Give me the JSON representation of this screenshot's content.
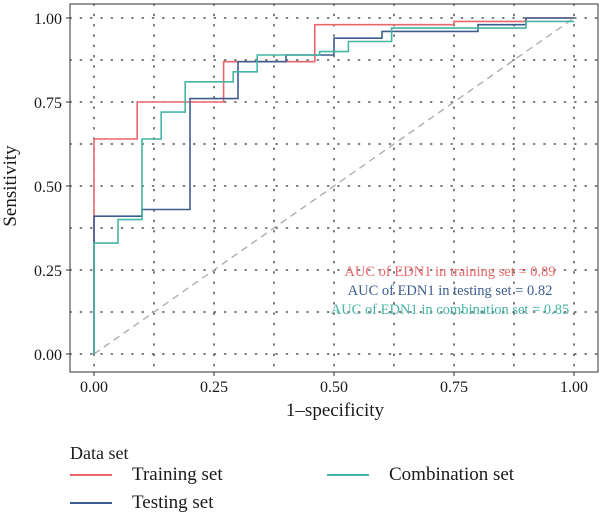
{
  "chart_data": {
    "type": "line",
    "xlabel": "1–specificity",
    "ylabel": "Sensitivity",
    "xlim": [
      0,
      1
    ],
    "ylim": [
      0,
      1
    ],
    "x_ticks": [
      "0.00",
      "0.25",
      "0.50",
      "0.75",
      "1.00"
    ],
    "y_ticks": [
      "0.00",
      "0.25",
      "0.50",
      "0.75",
      "1.00"
    ],
    "grid": "dotted, major and minor",
    "legend_placement": "bottom",
    "legend_title": "Data set",
    "reference_line": {
      "style": "dashed",
      "from": [
        0,
        0
      ],
      "to": [
        1,
        1
      ],
      "color": "#b3b3b3"
    },
    "series": [
      {
        "name": "Training set",
        "color": "#e8676a",
        "points": [
          [
            0,
            0
          ],
          [
            0,
            0.41
          ],
          [
            0,
            0.64
          ],
          [
            0.09,
            0.64
          ],
          [
            0.09,
            0.75
          ],
          [
            0.27,
            0.75
          ],
          [
            0.27,
            0.87
          ],
          [
            0.46,
            0.87
          ],
          [
            0.46,
            0.98
          ],
          [
            0.75,
            0.98
          ],
          [
            0.75,
            0.99
          ],
          [
            0.9,
            0.99
          ],
          [
            0.9,
            1.0
          ],
          [
            1.0,
            1.0
          ]
        ]
      },
      {
        "name": "Testing set",
        "color": "#3d5d8f",
        "points": [
          [
            0,
            0
          ],
          [
            0,
            0.41
          ],
          [
            0.1,
            0.41
          ],
          [
            0.1,
            0.43
          ],
          [
            0.2,
            0.43
          ],
          [
            0.2,
            0.76
          ],
          [
            0.3,
            0.76
          ],
          [
            0.3,
            0.87
          ],
          [
            0.4,
            0.87
          ],
          [
            0.4,
            0.89
          ],
          [
            0.5,
            0.89
          ],
          [
            0.5,
            0.94
          ],
          [
            0.6,
            0.94
          ],
          [
            0.6,
            0.96
          ],
          [
            0.8,
            0.96
          ],
          [
            0.8,
            0.98
          ],
          [
            0.9,
            0.98
          ],
          [
            0.9,
            1.0
          ],
          [
            1.0,
            1.0
          ]
        ]
      },
      {
        "name": "Combination set",
        "color": "#45b5a6",
        "points": [
          [
            0,
            0
          ],
          [
            0,
            0.33
          ],
          [
            0.05,
            0.33
          ],
          [
            0.05,
            0.4
          ],
          [
            0.1,
            0.4
          ],
          [
            0.1,
            0.64
          ],
          [
            0.14,
            0.64
          ],
          [
            0.14,
            0.72
          ],
          [
            0.19,
            0.72
          ],
          [
            0.19,
            0.81
          ],
          [
            0.29,
            0.81
          ],
          [
            0.29,
            0.84
          ],
          [
            0.34,
            0.84
          ],
          [
            0.34,
            0.89
          ],
          [
            0.47,
            0.89
          ],
          [
            0.47,
            0.9
          ],
          [
            0.53,
            0.9
          ],
          [
            0.53,
            0.93
          ],
          [
            0.62,
            0.93
          ],
          [
            0.62,
            0.97
          ],
          [
            0.9,
            0.97
          ],
          [
            0.9,
            0.99
          ],
          [
            1.0,
            0.99
          ]
        ]
      }
    ],
    "annotations": [
      {
        "text": "AUC of EDN1 in training set = 0.89",
        "color": "#e8676a"
      },
      {
        "text": "AUC of EDN1 in testing set = 0.82",
        "color": "#3d5d8f"
      },
      {
        "text": "AUC of EDN1 in combination set = 0.85",
        "color": "#45b5a6"
      }
    ]
  }
}
